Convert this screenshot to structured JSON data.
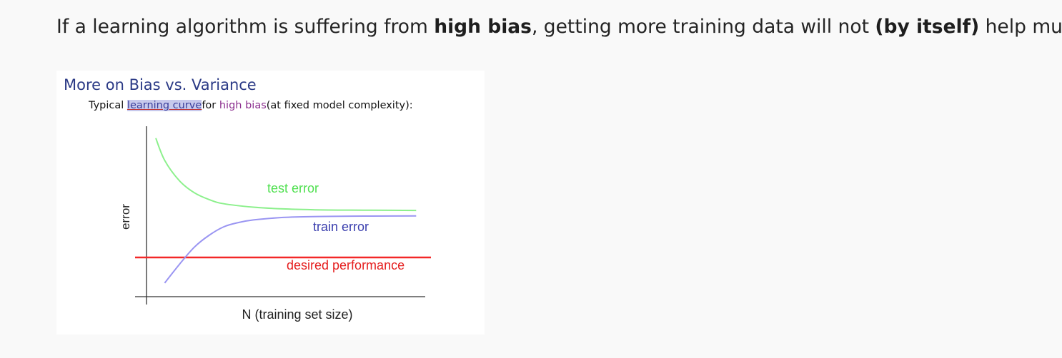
{
  "paragraph": {
    "text_1": "If a learning algorithm is suffering from ",
    "bold_1": "high bias",
    "text_2": ", getting more training data will not ",
    "bold_2": "(by itself)",
    "text_3": " help much."
  },
  "figure": {
    "title": "More on Bias vs. Variance",
    "subtitle_1": "Typical ",
    "subtitle_highlight": "learning curve",
    "subtitle_2": "for ",
    "subtitle_purple": "high bias",
    "subtitle_3": "(at fixed model complexity):"
  },
  "chart_data": {
    "type": "line",
    "xlabel": "N (training set size)",
    "ylabel": "error",
    "xlim": [
      0,
      10
    ],
    "ylim": [
      0,
      10
    ],
    "grid": false,
    "series": [
      {
        "name": "test error",
        "color": "#8cf08c",
        "x": [
          0.7,
          1.0,
          1.5,
          2.0,
          2.5,
          3.0,
          4.0,
          5.0,
          6.0,
          7.0,
          8.0,
          9.5
        ],
        "y": [
          9.3,
          8.0,
          6.8,
          6.1,
          5.7,
          5.45,
          5.25,
          5.15,
          5.1,
          5.08,
          5.07,
          5.06
        ]
      },
      {
        "name": "train error",
        "color": "#9a95f2",
        "x": [
          1.0,
          1.5,
          2.0,
          2.5,
          3.0,
          3.5,
          4.0,
          5.0,
          6.0,
          7.0,
          8.0,
          9.5
        ],
        "y": [
          0.8,
          1.9,
          2.9,
          3.6,
          4.1,
          4.35,
          4.5,
          4.65,
          4.7,
          4.72,
          4.73,
          4.74
        ]
      },
      {
        "name": "desired performance",
        "color": "#f32828",
        "x": [
          0.0,
          10.0
        ],
        "y": [
          2.3,
          2.3
        ]
      }
    ],
    "labels": {
      "test": "test error",
      "train": "train error",
      "desired": "desired performance"
    }
  }
}
